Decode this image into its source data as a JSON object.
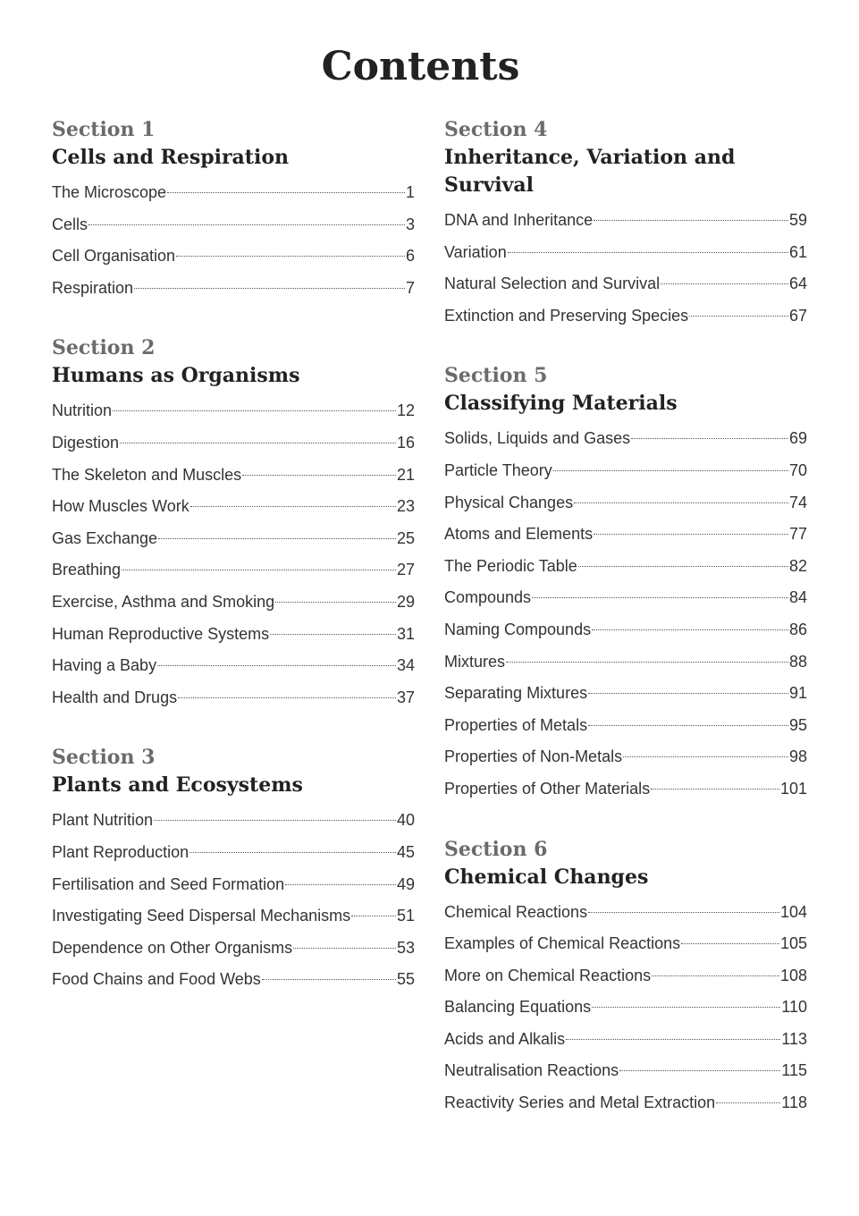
{
  "title": "Contents",
  "columns": [
    [
      {
        "label": "Section 1",
        "title": "Cells and Respiration",
        "entries": [
          {
            "name": "The Microscope",
            "page": "1"
          },
          {
            "name": "Cells",
            "page": "3"
          },
          {
            "name": "Cell Organisation",
            "page": "6"
          },
          {
            "name": "Respiration",
            "page": "7"
          }
        ]
      },
      {
        "label": "Section 2",
        "title": "Humans as Organisms",
        "entries": [
          {
            "name": "Nutrition",
            "page": "12"
          },
          {
            "name": "Digestion",
            "page": "16"
          },
          {
            "name": "The Skeleton and Muscles",
            "page": "21"
          },
          {
            "name": "How Muscles Work",
            "page": "23"
          },
          {
            "name": "Gas Exchange",
            "page": "25"
          },
          {
            "name": "Breathing",
            "page": "27"
          },
          {
            "name": "Exercise, Asthma and Smoking",
            "page": "29"
          },
          {
            "name": "Human Reproductive Systems",
            "page": "31"
          },
          {
            "name": "Having a Baby",
            "page": "34"
          },
          {
            "name": "Health and Drugs",
            "page": "37"
          }
        ]
      },
      {
        "label": "Section 3",
        "title": "Plants and Ecosystems",
        "entries": [
          {
            "name": "Plant Nutrition",
            "page": "40"
          },
          {
            "name": "Plant Reproduction",
            "page": "45"
          },
          {
            "name": "Fertilisation and Seed Formation",
            "page": "49"
          },
          {
            "name": "Investigating Seed Dispersal Mechanisms",
            "page": "51"
          },
          {
            "name": "Dependence on Other Organisms",
            "page": "53"
          },
          {
            "name": "Food Chains and Food Webs",
            "page": "55"
          }
        ]
      }
    ],
    [
      {
        "label": "Section 4",
        "title": "Inheritance, Variation and Survival",
        "entries": [
          {
            "name": "DNA and Inheritance",
            "page": "59"
          },
          {
            "name": "Variation",
            "page": "61"
          },
          {
            "name": "Natural Selection and Survival",
            "page": "64"
          },
          {
            "name": "Extinction and Preserving Species",
            "page": "67"
          }
        ]
      },
      {
        "label": "Section 5",
        "title": "Classifying Materials",
        "entries": [
          {
            "name": "Solids, Liquids and Gases",
            "page": "69"
          },
          {
            "name": "Particle Theory",
            "page": "70"
          },
          {
            "name": "Physical Changes",
            "page": "74"
          },
          {
            "name": "Atoms and Elements",
            "page": "77"
          },
          {
            "name": "The Periodic Table",
            "page": "82"
          },
          {
            "name": "Compounds",
            "page": "84"
          },
          {
            "name": "Naming Compounds",
            "page": "86"
          },
          {
            "name": "Mixtures",
            "page": "88"
          },
          {
            "name": "Separating Mixtures",
            "page": "91"
          },
          {
            "name": "Properties of Metals",
            "page": "95"
          },
          {
            "name": "Properties of Non-Metals",
            "page": "98"
          },
          {
            "name": "Properties of Other Materials",
            "page": "101"
          }
        ]
      },
      {
        "label": "Section 6",
        "title": "Chemical Changes",
        "entries": [
          {
            "name": "Chemical Reactions",
            "page": "104"
          },
          {
            "name": "Examples of Chemical Reactions",
            "page": "105"
          },
          {
            "name": "More on Chemical Reactions",
            "page": "108"
          },
          {
            "name": "Balancing Equations",
            "page": "110"
          },
          {
            "name": "Acids and Alkalis",
            "page": "113"
          },
          {
            "name": "Neutralisation Reactions",
            "page": "115"
          },
          {
            "name": "Reactivity Series and Metal Extraction",
            "page": "118"
          }
        ]
      }
    ]
  ]
}
